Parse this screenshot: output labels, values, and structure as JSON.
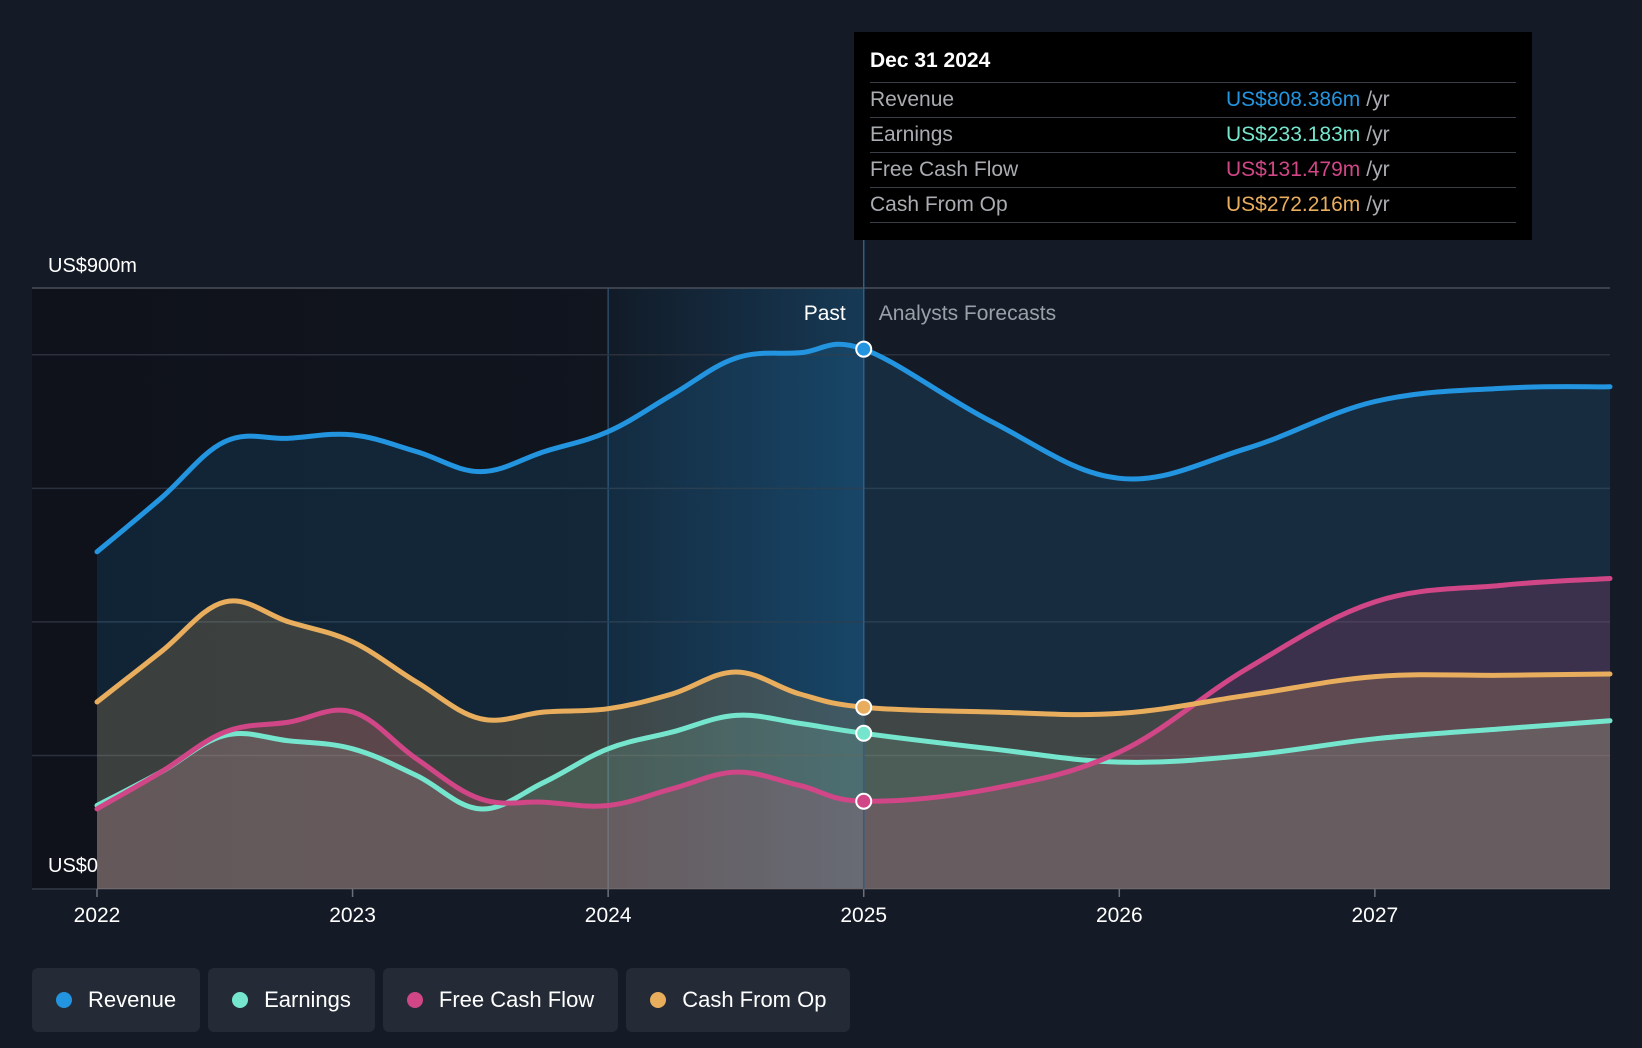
{
  "chart_data": {
    "type": "area",
    "title": "",
    "xlabel": "",
    "ylabel": "",
    "currency_unit": "US$m",
    "ylim": [
      0,
      900
    ],
    "y_tick_labels": {
      "top": "US$900m",
      "bottom": "US$0"
    },
    "x_ticks": [
      {
        "label": "2022",
        "value": 2022.0
      },
      {
        "label": "2023",
        "value": 2023.0
      },
      {
        "label": "2024",
        "value": 2024.0
      },
      {
        "label": "2025",
        "value": 2025.0
      },
      {
        "label": "2026",
        "value": 2026.0
      },
      {
        "label": "2027",
        "value": 2027.0
      }
    ],
    "x_range": [
      2022.0,
      2027.92
    ],
    "past_forecast_split": 2025.0,
    "past_band_start": 2024.0,
    "past_label": "Past",
    "forecast_label": "Analysts Forecasts",
    "series": [
      {
        "name": "Revenue",
        "color": "#2394df",
        "points": [
          [
            2022.0,
            505
          ],
          [
            2022.25,
            585
          ],
          [
            2022.5,
            670
          ],
          [
            2022.75,
            675
          ],
          [
            2023.0,
            680
          ],
          [
            2023.25,
            655
          ],
          [
            2023.5,
            625
          ],
          [
            2023.75,
            655
          ],
          [
            2024.0,
            685
          ],
          [
            2024.25,
            740
          ],
          [
            2024.5,
            795
          ],
          [
            2024.75,
            803
          ],
          [
            2025.0,
            808.386
          ],
          [
            2025.5,
            700
          ],
          [
            2026.0,
            615
          ],
          [
            2026.5,
            660
          ],
          [
            2027.0,
            730
          ],
          [
            2027.5,
            750
          ],
          [
            2027.92,
            752
          ]
        ]
      },
      {
        "name": "Earnings",
        "color": "#75e6cd",
        "points": [
          [
            2022.0,
            125
          ],
          [
            2022.25,
            175
          ],
          [
            2022.5,
            230
          ],
          [
            2022.75,
            222
          ],
          [
            2023.0,
            210
          ],
          [
            2023.25,
            170
          ],
          [
            2023.5,
            120
          ],
          [
            2023.75,
            160
          ],
          [
            2024.0,
            210
          ],
          [
            2024.25,
            235
          ],
          [
            2024.5,
            260
          ],
          [
            2024.75,
            248
          ],
          [
            2025.0,
            233.183
          ],
          [
            2025.5,
            210
          ],
          [
            2026.0,
            190
          ],
          [
            2026.5,
            200
          ],
          [
            2027.0,
            225
          ],
          [
            2027.5,
            240
          ],
          [
            2027.92,
            252
          ]
        ]
      },
      {
        "name": "Free Cash Flow",
        "color": "#d04686",
        "points": [
          [
            2022.0,
            120
          ],
          [
            2022.25,
            175
          ],
          [
            2022.5,
            235
          ],
          [
            2022.75,
            250
          ],
          [
            2023.0,
            265
          ],
          [
            2023.25,
            195
          ],
          [
            2023.5,
            135
          ],
          [
            2023.75,
            130
          ],
          [
            2024.0,
            125
          ],
          [
            2024.25,
            150
          ],
          [
            2024.5,
            175
          ],
          [
            2024.75,
            155
          ],
          [
            2025.0,
            131.479
          ],
          [
            2025.5,
            150
          ],
          [
            2026.0,
            205
          ],
          [
            2026.5,
            330
          ],
          [
            2027.0,
            430
          ],
          [
            2027.5,
            455
          ],
          [
            2027.92,
            465
          ]
        ]
      },
      {
        "name": "Cash From Op",
        "color": "#e8ad5d",
        "points": [
          [
            2022.0,
            280
          ],
          [
            2022.25,
            355
          ],
          [
            2022.5,
            430
          ],
          [
            2022.75,
            400
          ],
          [
            2023.0,
            370
          ],
          [
            2023.25,
            310
          ],
          [
            2023.5,
            255
          ],
          [
            2023.75,
            265
          ],
          [
            2024.0,
            270
          ],
          [
            2024.25,
            292
          ],
          [
            2024.5,
            325
          ],
          [
            2024.75,
            292
          ],
          [
            2025.0,
            272.216
          ],
          [
            2025.5,
            265
          ],
          [
            2026.0,
            263
          ],
          [
            2026.5,
            290
          ],
          [
            2027.0,
            318
          ],
          [
            2027.5,
            320
          ],
          [
            2027.92,
            322
          ]
        ]
      }
    ],
    "tooltip": {
      "date": "Dec 31 2024",
      "unit": "/yr",
      "rows": [
        {
          "label": "Revenue",
          "value": "US$808.386m",
          "color": "#2394df"
        },
        {
          "label": "Earnings",
          "value": "US$233.183m",
          "color": "#75e6cd"
        },
        {
          "label": "Free Cash Flow",
          "value": "US$131.479m",
          "color": "#d04686"
        },
        {
          "label": "Cash From Op",
          "value": "US$272.216m",
          "color": "#e8ad5d"
        }
      ]
    },
    "legend": [
      {
        "label": "Revenue",
        "color": "#2394df"
      },
      {
        "label": "Earnings",
        "color": "#75e6cd"
      },
      {
        "label": "Free Cash Flow",
        "color": "#d04686"
      },
      {
        "label": "Cash From Op",
        "color": "#e8ad5d"
      }
    ]
  }
}
